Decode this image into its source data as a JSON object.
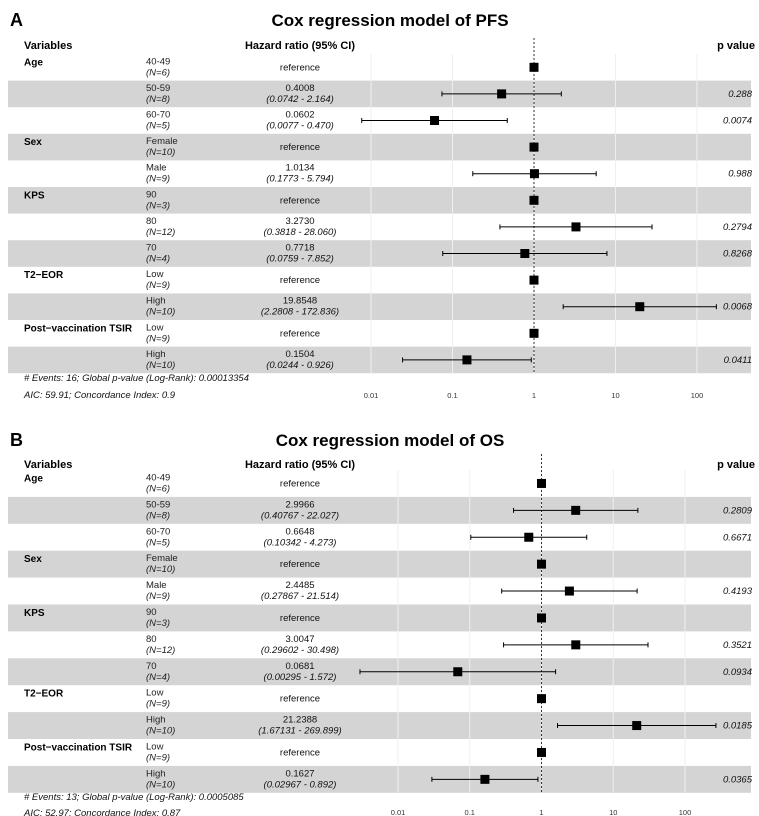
{
  "chart_data": [
    {
      "type": "forest",
      "panel_label": "A",
      "title": "Cox regression model of PFS",
      "headers": {
        "variables": "Variables",
        "hazard_ratio": "Hazard ratio (95% CI)",
        "p_value": "p value"
      },
      "x_scale": "log",
      "x_ticks": [
        0.01,
        0.1,
        1,
        10,
        100
      ],
      "x_tick_labels": [
        "0.01",
        "0.1",
        "1",
        "10",
        "100"
      ],
      "rows": [
        {
          "variable": "Age",
          "level": "40-49",
          "n": "(N=6)",
          "reference": "reference",
          "hr": 1,
          "shaded": false
        },
        {
          "variable": "",
          "level": "50-59",
          "n": "(N=8)",
          "hr_text": "0.4008",
          "ci_text": "(0.0742 -   2.164)",
          "hr": 0.4008,
          "lo": 0.0742,
          "hi": 2.164,
          "p": "0.288",
          "shaded": true
        },
        {
          "variable": "",
          "level": "60-70",
          "n": "(N=5)",
          "hr_text": "0.0602",
          "ci_text": "(0.0077 -   0.470)",
          "hr": 0.0602,
          "lo": 0.0077,
          "hi": 0.47,
          "p": "0.0074",
          "shaded": false
        },
        {
          "variable": "Sex",
          "level": "Female",
          "n": "(N=10)",
          "reference": "reference",
          "hr": 1,
          "shaded": true
        },
        {
          "variable": "",
          "level": "Male",
          "n": "(N=9)",
          "hr_text": "1.0134",
          "ci_text": "(0.1773 -   5.794)",
          "hr": 1.0134,
          "lo": 0.1773,
          "hi": 5.794,
          "p": "0.988",
          "shaded": false
        },
        {
          "variable": "KPS",
          "level": "90",
          "n": "(N=3)",
          "reference": "reference",
          "hr": 1,
          "shaded": true
        },
        {
          "variable": "",
          "level": "80",
          "n": "(N=12)",
          "hr_text": "3.2730",
          "ci_text": "(0.3818 -  28.060)",
          "hr": 3.273,
          "lo": 0.3818,
          "hi": 28.06,
          "p": "0.2794",
          "shaded": false
        },
        {
          "variable": "",
          "level": "70",
          "n": "(N=4)",
          "hr_text": "0.7718",
          "ci_text": "(0.0759 -   7.852)",
          "hr": 0.7718,
          "lo": 0.0759,
          "hi": 7.852,
          "p": "0.8268",
          "shaded": true
        },
        {
          "variable": "T2−EOR",
          "level": "Low",
          "n": "(N=9)",
          "reference": "reference",
          "hr": 1,
          "shaded": false
        },
        {
          "variable": "",
          "level": "High",
          "n": "(N=10)",
          "hr_text": "19.8548",
          "ci_text": "(2.2808 - 172.836)",
          "hr": 19.8548,
          "lo": 2.2808,
          "hi": 172.836,
          "p": "0.0068",
          "shaded": true
        },
        {
          "variable": "Post−vaccination  TSIR",
          "level": "Low",
          "n": "(N=9)",
          "reference": "reference",
          "hr": 1,
          "shaded": false
        },
        {
          "variable": "",
          "level": "High",
          "n": "(N=10)",
          "hr_text": "0.1504",
          "ci_text": "(0.0244 -   0.926)",
          "hr": 0.1504,
          "lo": 0.0244,
          "hi": 0.926,
          "p": "0.0411",
          "shaded": true
        }
      ],
      "footnotes": [
        "# Events: 16; Global p-value (Log-Rank): 0.00013354",
        "AIC: 59.91; Concordance Index: 0.9"
      ]
    },
    {
      "type": "forest",
      "panel_label": "B",
      "title": "Cox regression model of OS",
      "headers": {
        "variables": "Variables",
        "hazard_ratio": "Hazard ratio (95% CI)",
        "p_value": "p value"
      },
      "x_scale": "log",
      "x_ticks": [
        0.01,
        0.1,
        1,
        10,
        100
      ],
      "x_tick_labels": [
        "0.01",
        "0.1",
        "1",
        "10",
        "100"
      ],
      "rows": [
        {
          "variable": "Age",
          "level": "40-49",
          "n": "(N=6)",
          "reference": "reference",
          "hr": 1,
          "shaded": false
        },
        {
          "variable": "",
          "level": "50-59",
          "n": "(N=8)",
          "hr_text": "2.9966",
          "ci_text": "(0.40767 -  22.027)",
          "hr": 2.9966,
          "lo": 0.40767,
          "hi": 22.027,
          "p": "0.2809",
          "shaded": true
        },
        {
          "variable": "",
          "level": "60-70",
          "n": "(N=5)",
          "hr_text": "0.6648",
          "ci_text": "(0.10342 -   4.273)",
          "hr": 0.6648,
          "lo": 0.10342,
          "hi": 4.273,
          "p": "0.6671",
          "shaded": false
        },
        {
          "variable": "Sex",
          "level": "Female",
          "n": "(N=10)",
          "reference": "reference",
          "hr": 1,
          "shaded": true
        },
        {
          "variable": "",
          "level": "Male",
          "n": "(N=9)",
          "hr_text": "2.4485",
          "ci_text": "(0.27867 -  21.514)",
          "hr": 2.4485,
          "lo": 0.27867,
          "hi": 21.514,
          "p": "0.4193",
          "shaded": false
        },
        {
          "variable": "KPS",
          "level": "90",
          "n": "(N=3)",
          "reference": "reference",
          "hr": 1,
          "shaded": true
        },
        {
          "variable": "",
          "level": "80",
          "n": "(N=12)",
          "hr_text": "3.0047",
          "ci_text": "(0.29602 -  30.498)",
          "hr": 3.0047,
          "lo": 0.29602,
          "hi": 30.498,
          "p": "0.3521",
          "shaded": false
        },
        {
          "variable": "",
          "level": "70",
          "n": "(N=4)",
          "hr_text": "0.0681",
          "ci_text": "(0.00295 -   1.572)",
          "hr": 0.0681,
          "lo": 0.00295,
          "hi": 1.572,
          "p": "0.0934",
          "shaded": true
        },
        {
          "variable": "T2−EOR",
          "level": "Low",
          "n": "(N=9)",
          "reference": "reference",
          "hr": 1,
          "shaded": false
        },
        {
          "variable": "",
          "level": "High",
          "n": "(N=10)",
          "hr_text": "21.2388",
          "ci_text": "(1.67131 - 269.899)",
          "hr": 21.2388,
          "lo": 1.67131,
          "hi": 269.899,
          "p": "0.0185",
          "shaded": true
        },
        {
          "variable": "Post−vaccination  TSIR",
          "level": "Low",
          "n": "(N=9)",
          "reference": "reference",
          "hr": 1,
          "shaded": false
        },
        {
          "variable": "",
          "level": "High",
          "n": "(N=10)",
          "hr_text": "0.1627",
          "ci_text": "(0.02967 -   0.892)",
          "hr": 0.1627,
          "lo": 0.02967,
          "hi": 0.892,
          "p": "0.0365",
          "shaded": true
        }
      ],
      "footnotes": [
        "# Events: 13; Global p-value (Log-Rank): 0.0005085",
        "AIC: 52.97; Concordance Index: 0.87"
      ]
    }
  ]
}
